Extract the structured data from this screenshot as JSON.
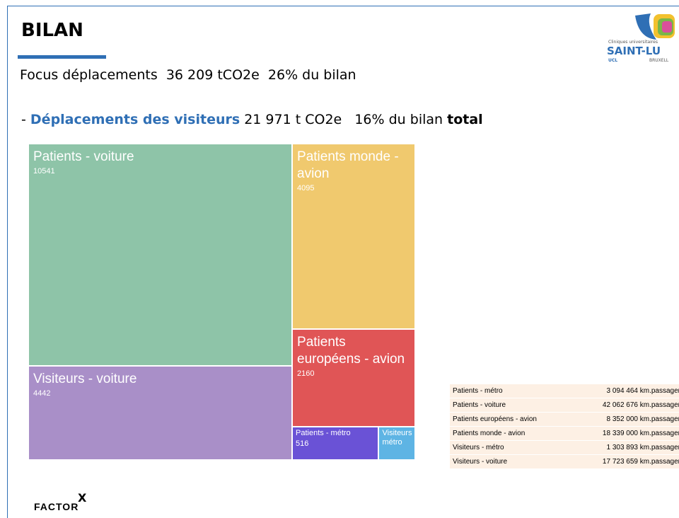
{
  "header": {
    "title": "BILAN",
    "focus": "Focus déplacements  36 209 tCO2e  26% du bilan",
    "line_parts": [
      "- ",
      "Déplacements des visiteurs",
      " 21 971 t CO2e   16% du bilan ",
      "total"
    ]
  },
  "logo": {
    "small": "Cliniques universitaires",
    "name": "SAINT-LU",
    "left": "UCL",
    "right": "BRUXELL"
  },
  "chart_data": {
    "type": "treemap",
    "categories": [
      "Patients - voiture",
      "Visiteurs - voiture",
      "Patients monde - avion",
      "Patients européens - avion",
      "Patients - métro",
      "Visiteurs métro"
    ],
    "values": [
      10541,
      4442,
      4095,
      2160,
      516,
      217
    ],
    "colors": [
      "#8ec4a8",
      "#a98fc8",
      "#f0c96e",
      "#e05556",
      "#6a52d6",
      "#5eb4e4"
    ]
  },
  "table": {
    "rows": [
      [
        "Patients - métro",
        "3 094 464 km.passager"
      ],
      [
        "Patients - voiture",
        "42 062 676 km.passager"
      ],
      [
        "Patients européens - avion",
        "8 352 000 km.passager"
      ],
      [
        "Patients monde - avion",
        "18 339 000 km.passager"
      ],
      [
        "Visiteurs - métro",
        "1 303 893 km.passager"
      ],
      [
        "Visiteurs - voiture",
        "17 723 659 km.passager"
      ]
    ]
  },
  "footer": {
    "brand": "FACTOR",
    "mark": "X"
  }
}
